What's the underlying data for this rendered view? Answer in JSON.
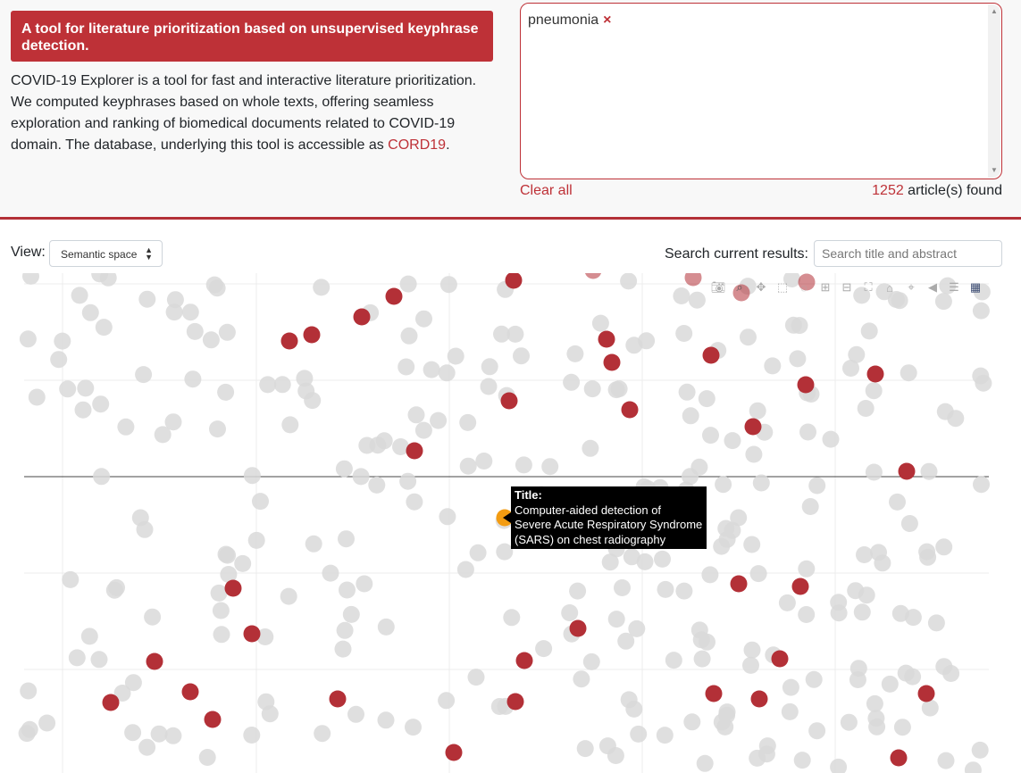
{
  "header": {
    "banner": "A tool for literature prioritization based on unsupervised keyphrase detection.",
    "description_text": "COVID-19 Explorer is a tool for fast and interactive literature prioritization. We computed keyphrases based on whole texts, offering seamless exploration and ranking of biomedical documents related to COVID-19 domain. The database, underlying this tool is accessible as ",
    "cord_link": "CORD19",
    "description_end": "."
  },
  "keywords": {
    "chips": [
      "pneumonia"
    ],
    "remove_icon": "×"
  },
  "results": {
    "clear_all": "Clear all",
    "count": "1252",
    "count_suffix": " article(s) found"
  },
  "controls": {
    "view_label": "View:",
    "view_value": "Semantic space",
    "search_label": "Search current results:",
    "search_placeholder": "Search title and abstract"
  },
  "tooltip": {
    "label": "Title:",
    "line1": "Computer-aided detection of",
    "line2": "Severe Acute Respiratory Syndrome",
    "line3": "(SARS) on chest radiography"
  },
  "modebar": [
    "camera-icon",
    "zoom-icon",
    "pan-icon",
    "box-select-icon",
    "lasso-icon",
    "zoom-in-icon",
    "zoom-out-icon",
    "autoscale-icon",
    "reset-axes-icon",
    "spike-lines-icon",
    "hover-closest-icon",
    "hover-compare-icon",
    "plotly-logo-icon"
  ],
  "colors": {
    "accent": "#be3137",
    "highlight": "#b33037",
    "muted": "#d9d9d9",
    "hover": "#f39c12"
  }
}
